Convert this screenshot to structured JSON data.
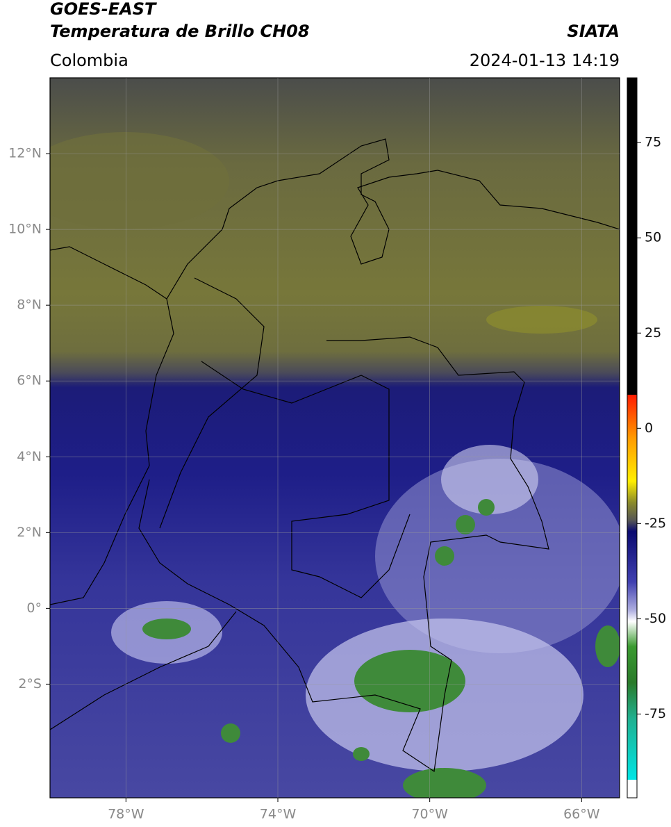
{
  "header": {
    "title": "GOES-EAST",
    "subtitle": "Temperatura de Brillo CH08",
    "source": "SIATA",
    "region": "Colombia",
    "datetime": "2024-01-13 14:19"
  },
  "map": {
    "xlim": [
      -80,
      -65
    ],
    "ylim": [
      -5,
      14
    ],
    "xticks": [
      {
        "value": -78,
        "label": "78°W"
      },
      {
        "value": -74,
        "label": "74°W"
      },
      {
        "value": -70,
        "label": "70°W"
      },
      {
        "value": -66,
        "label": "66°W"
      }
    ],
    "yticks": [
      {
        "value": 12,
        "label": "12°N"
      },
      {
        "value": 10,
        "label": "10°N"
      },
      {
        "value": 8,
        "label": "8°N"
      },
      {
        "value": 6,
        "label": "6°N"
      },
      {
        "value": 4,
        "label": "4°N"
      },
      {
        "value": 2,
        "label": "2°N"
      },
      {
        "value": 0,
        "label": "0°"
      },
      {
        "value": -2,
        "label": "2°S"
      }
    ],
    "grid": true
  },
  "colorbar": {
    "lim": [
      -97,
      92
    ],
    "ticks": [
      75,
      50,
      25,
      0,
      -25,
      -50,
      -75
    ]
  }
}
